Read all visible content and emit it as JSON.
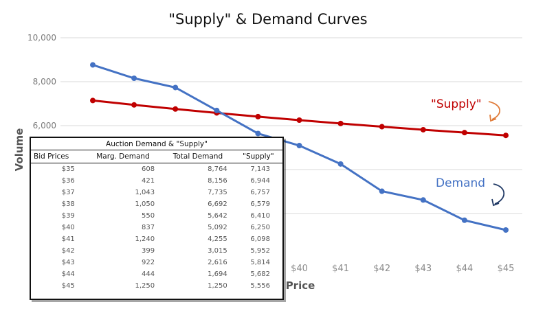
{
  "chart_data": {
    "type": "line",
    "title": "\"Supply\" & Demand Curves",
    "xlabel": "Price",
    "ylabel": "Volume",
    "categories": [
      "$35",
      "$36",
      "$37",
      "$38",
      "$39",
      "$40",
      "$41",
      "$42",
      "$43",
      "$44",
      "$45"
    ],
    "ylim": [
      0,
      10000
    ],
    "yticks": [
      "10,000",
      "8,000",
      "6,000"
    ],
    "grid": true,
    "series": [
      {
        "name": "\"Supply\"",
        "color": "#c00000",
        "values": [
          7143,
          6944,
          6757,
          6579,
          6410,
          6250,
          6098,
          5952,
          5814,
          5682,
          5556
        ]
      },
      {
        "name": "Demand",
        "color": "#4472c4",
        "values": [
          8764,
          8156,
          7735,
          6692,
          5642,
          5092,
          4255,
          3015,
          2616,
          1694,
          1250
        ]
      }
    ],
    "annotations": [
      {
        "text": "\"Supply\"",
        "color": "#c00000",
        "arrow_color": "#e07b39"
      },
      {
        "text": "Demand",
        "color": "#4472c4",
        "arrow_color": "#1f3864"
      }
    ]
  },
  "table": {
    "title": "Auction Demand & \"Supply\"",
    "columns": [
      "Bid Prices",
      "Marg. Demand",
      "Total Demand",
      "\"Supply\""
    ],
    "rows": [
      [
        "$35",
        "608",
        "8,764",
        "7,143"
      ],
      [
        "$36",
        "421",
        "8,156",
        "6,944"
      ],
      [
        "$37",
        "1,043",
        "7,735",
        "6,757"
      ],
      [
        "$38",
        "1,050",
        "6,692",
        "6,579"
      ],
      [
        "$39",
        "550",
        "5,642",
        "6,410"
      ],
      [
        "$40",
        "837",
        "5,092",
        "6,250"
      ],
      [
        "$41",
        "1,240",
        "4,255",
        "6,098"
      ],
      [
        "$42",
        "399",
        "3,015",
        "5,952"
      ],
      [
        "$43",
        "922",
        "2,616",
        "5,814"
      ],
      [
        "$44",
        "444",
        "1,694",
        "5,682"
      ],
      [
        "$45",
        "1,250",
        "1,250",
        "5,556"
      ]
    ]
  }
}
